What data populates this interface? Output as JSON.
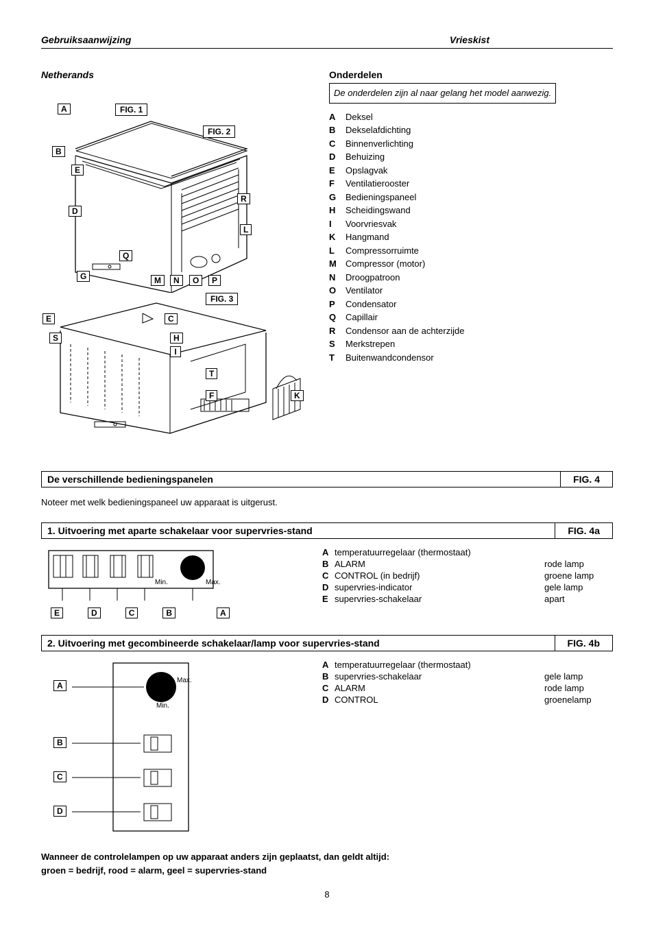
{
  "header": {
    "left": "Gebruiksaanwijzing",
    "right": "Vrieskist"
  },
  "language_label": "Netherands",
  "parts": {
    "title": "Onderdelen",
    "note": "De onderdelen zijn al naar gelang het model aanwezig.",
    "items": [
      {
        "letter": "A",
        "name": "Deksel"
      },
      {
        "letter": "B",
        "name": "Dekselafdichting"
      },
      {
        "letter": "C",
        "name": "Binnenverlichting"
      },
      {
        "letter": "D",
        "name": "Behuizing"
      },
      {
        "letter": "E",
        "name": "Opslagvak"
      },
      {
        "letter": "F",
        "name": "Ventilatierooster"
      },
      {
        "letter": "G",
        "name": "Bedieningspaneel"
      },
      {
        "letter": "H",
        "name": "Scheidingswand"
      },
      {
        "letter": "I",
        "name": "Voorvriesvak"
      },
      {
        "letter": "K",
        "name": "Hangmand"
      },
      {
        "letter": "L",
        "name": "Compressorruimte"
      },
      {
        "letter": "M",
        "name": "Compressor (motor)"
      },
      {
        "letter": "N",
        "name": "Droogpatroon"
      },
      {
        "letter": "O",
        "name": "Ventilator"
      },
      {
        "letter": "P",
        "name": "Condensator"
      },
      {
        "letter": "Q",
        "name": "Capillair"
      },
      {
        "letter": "R",
        "name": "Condensor aan de achterzijde"
      },
      {
        "letter": "S",
        "name": "Merkstrepen"
      },
      {
        "letter": "T",
        "name": "Buitenwandcondensor"
      }
    ]
  },
  "fig_labels": {
    "fig1": "FIG. 1",
    "fig2": "FIG. 2",
    "fig3": "FIG. 3",
    "A": "A",
    "B": "B",
    "C": "C",
    "D": "D",
    "E": "E",
    "F": "F",
    "G": "G",
    "H": "H",
    "I": "I",
    "K": "K",
    "L": "L",
    "M": "M",
    "N": "N",
    "O": "O",
    "P": "P",
    "Q": "Q",
    "R": "R",
    "S": "S",
    "T": "T"
  },
  "section2": {
    "title": "De verschillende bedieningspanelen",
    "fig": "FIG. 4",
    "note": "Noteer met welk bedieningspaneel uw apparaat is uitgerust."
  },
  "panel4a": {
    "title": "1. Uitvoering met aparte schakelaar voor supervries-stand",
    "fig": "FIG. 4a",
    "min": "Min.",
    "max": "Max.",
    "labels": {
      "A": "A",
      "B": "B",
      "C": "C",
      "D": "D",
      "E": "E"
    },
    "items": [
      {
        "letter": "A",
        "name": "temperatuurregelaar (thermostaat)",
        "lamp": ""
      },
      {
        "letter": "B",
        "name": "ALARM",
        "lamp": "rode lamp"
      },
      {
        "letter": "C",
        "name": "CONTROL (in bedrijf)",
        "lamp": "groene lamp"
      },
      {
        "letter": "D",
        "name": "supervries-indicator",
        "lamp": "gele lamp"
      },
      {
        "letter": "E",
        "name": "supervries-schakelaar",
        "lamp": "apart"
      }
    ]
  },
  "panel4b": {
    "title": "2. Uitvoering met gecombineerde schakelaar/lamp voor supervries-stand",
    "fig": "FIG. 4b",
    "min": "Min.",
    "max": "Max.",
    "labels": {
      "A": "A",
      "B": "B",
      "C": "C",
      "D": "D"
    },
    "items": [
      {
        "letter": "A",
        "name": "temperatuurregelaar (thermostaat)",
        "lamp": ""
      },
      {
        "letter": "B",
        "name": "supervries-schakelaar",
        "lamp": "gele lamp"
      },
      {
        "letter": "C",
        "name": "ALARM",
        "lamp": "rode lamp"
      },
      {
        "letter": "D",
        "name": "CONTROL",
        "lamp": "groenelamp"
      }
    ]
  },
  "footer": {
    "line1": "Wanneer de controlelampen op uw apparaat anders zijn geplaatst, dan geldt altijd:",
    "line2": "groen = bedrijf, rood = alarm, geel = supervries-stand"
  },
  "page_number": "8"
}
